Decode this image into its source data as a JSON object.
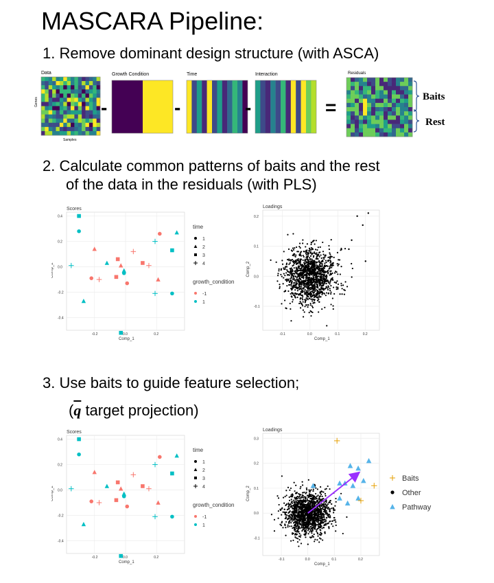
{
  "title": "MASCARA Pipeline:",
  "steps": {
    "s1": "1.  Remove dominant design structure (with ASCA)",
    "s2a": "2.  Calculate common patterns of baits and the rest",
    "s2b": "of the data in the residuals (with PLS)",
    "s3a": "3.  Use baits to guide feature selection;",
    "s3b_prefix": "(",
    "s3b_q": "q",
    "s3b_suffix": " target projection)"
  },
  "heatmaps": {
    "data": "Data",
    "growth": "Growth Condition",
    "time": "Time",
    "interaction": "Interaction",
    "residuals": "Residuals",
    "genes": "Genes",
    "samples": "Samples",
    "minus": "-",
    "equals": "=",
    "baits": "Baits",
    "rest": "Rest"
  },
  "plots": {
    "scores_title": "Scores",
    "loadings_title": "Loadings",
    "xlabel": "Comp_1",
    "ylabel": "Comp_2",
    "legend_time_title": "time",
    "legend_time_items": [
      "1",
      "2",
      "3",
      "4"
    ],
    "legend_gc_title": "growth_condition",
    "legend_gc_items": [
      "-1",
      "1"
    ],
    "legend3_items": [
      "Baits",
      "Other",
      "Pathway"
    ]
  },
  "colors": {
    "salmon": "#F8766D",
    "teal": "#00BFC4",
    "viridis_dark": "#440154",
    "viridis_yellow": "#FDE725",
    "arrow": "#9B30FF",
    "baits": "#E69F00",
    "pathway": "#56B4E9",
    "brace": "#2F5597"
  },
  "chart_data": [
    {
      "type": "scatter",
      "title": "Scores",
      "xlabel": "Comp_1",
      "ylabel": "Comp_2",
      "xticks": [
        "-0.2",
        "0.0",
        "0.2"
      ],
      "yticks": [
        "0.4",
        "0.2",
        "0.0",
        "-0.2",
        "-0.4"
      ],
      "xlim": [
        -0.38,
        0.38
      ],
      "ylim": [
        -0.5,
        0.43
      ],
      "points": [
        {
          "x": -0.3,
          "y": 0.4,
          "time": 3,
          "gc": 1
        },
        {
          "x": -0.3,
          "y": 0.28,
          "time": 1,
          "gc": 1
        },
        {
          "x": -0.35,
          "y": 0.01,
          "time": 4,
          "gc": 1
        },
        {
          "x": -0.27,
          "y": -0.27,
          "time": 2,
          "gc": 1
        },
        {
          "x": -0.2,
          "y": 0.14,
          "time": 2,
          "gc": -1
        },
        {
          "x": -0.22,
          "y": -0.09,
          "time": 1,
          "gc": -1
        },
        {
          "x": -0.17,
          "y": -0.1,
          "time": 4,
          "gc": -1
        },
        {
          "x": -0.12,
          "y": 0.03,
          "time": 2,
          "gc": 1
        },
        {
          "x": -0.05,
          "y": 0.06,
          "time": 3,
          "gc": -1
        },
        {
          "x": -0.06,
          "y": -0.08,
          "time": 3,
          "gc": -1
        },
        {
          "x": -0.03,
          "y": 0.01,
          "time": 2,
          "gc": -1
        },
        {
          "x": -0.01,
          "y": -0.03,
          "time": 2,
          "gc": 1
        },
        {
          "x": -0.01,
          "y": -0.05,
          "time": 1,
          "gc": 1
        },
        {
          "x": 0.01,
          "y": -0.13,
          "time": 1,
          "gc": -1
        },
        {
          "x": 0.05,
          "y": 0.12,
          "time": 4,
          "gc": -1
        },
        {
          "x": 0.11,
          "y": 0.03,
          "time": 3,
          "gc": -1
        },
        {
          "x": 0.15,
          "y": 0.01,
          "time": 4,
          "gc": -1
        },
        {
          "x": 0.19,
          "y": 0.2,
          "time": 4,
          "gc": 1
        },
        {
          "x": 0.22,
          "y": 0.26,
          "time": 1,
          "gc": -1
        },
        {
          "x": 0.21,
          "y": -0.1,
          "time": 2,
          "gc": -1
        },
        {
          "x": 0.19,
          "y": -0.21,
          "time": 4,
          "gc": 1
        },
        {
          "x": 0.33,
          "y": 0.27,
          "time": 2,
          "gc": 1
        },
        {
          "x": 0.3,
          "y": 0.13,
          "time": 3,
          "gc": 1
        },
        {
          "x": 0.3,
          "y": -0.21,
          "time": 1,
          "gc": 1
        },
        {
          "x": -0.03,
          "y": -0.52,
          "time": 3,
          "gc": 1
        }
      ]
    },
    {
      "type": "scatter",
      "title": "Loadings",
      "xlabel": "Comp_1",
      "ylabel": "Comp_2",
      "xticks": [
        "-0.1",
        "0.0",
        "0.1",
        "0.2"
      ],
      "yticks": [
        "0.2",
        "0.1",
        "0.0",
        "-0.1"
      ],
      "xlim": [
        -0.17,
        0.25
      ],
      "ylim": [
        -0.18,
        0.22
      ],
      "note_points": "dense cloud of ~1500 points centred at (0,0); sd approx 0.045 in both directions, plus outliers near (0.17,0.2),(0.21,0.21),(0.2,0.05),(0.19,0.17)"
    },
    {
      "type": "scatter",
      "title": "Scores",
      "xlabel": "Comp_1",
      "ylabel": "Comp_2",
      "same_as": "first scores plot"
    },
    {
      "type": "scatter",
      "title": "Loadings",
      "xlabel": "Comp_1",
      "ylabel": "Comp_2",
      "xticks": [
        "-0.1",
        "0.0",
        "0.1",
        "0.2"
      ],
      "yticks": [
        "0.3",
        "0.2",
        "0.1",
        "0.0",
        "-0.1"
      ],
      "xlim": [
        -0.17,
        0.27
      ],
      "ylim": [
        -0.17,
        0.32
      ],
      "baits": [
        [
          0.11,
          0.29
        ],
        [
          0.25,
          0.11
        ],
        [
          0.2,
          0.05
        ]
      ],
      "pathway": [
        [
          0.16,
          0.19
        ],
        [
          0.19,
          0.18
        ],
        [
          0.23,
          0.21
        ],
        [
          0.21,
          0.13
        ],
        [
          0.12,
          0.12
        ],
        [
          0.14,
          0.12
        ],
        [
          0.17,
          0.11
        ],
        [
          0.19,
          0.06
        ],
        [
          0.12,
          0.06
        ],
        [
          0.15,
          0.04
        ],
        [
          0.02,
          0.11
        ]
      ],
      "arrow": {
        "from": [
          0.0,
          0.0
        ],
        "to": [
          0.19,
          0.16
        ]
      }
    }
  ]
}
